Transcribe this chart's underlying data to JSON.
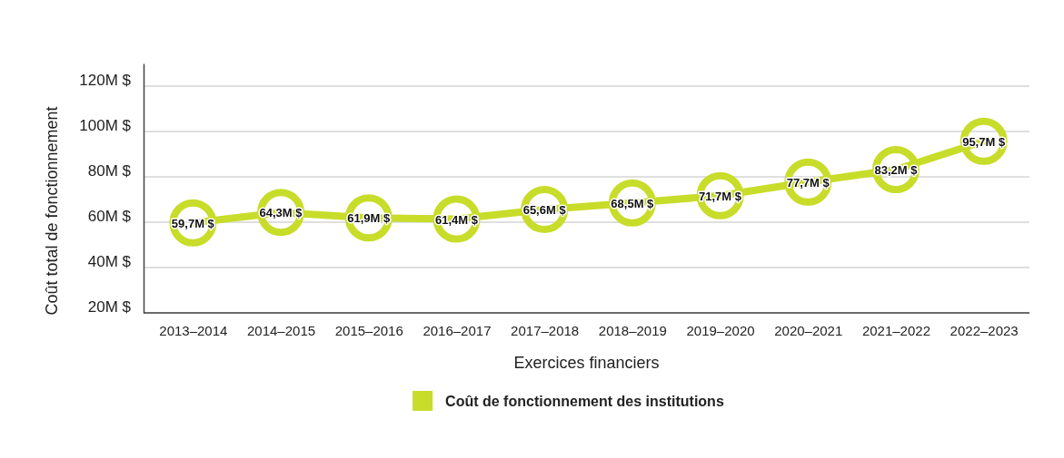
{
  "chart_data": {
    "type": "line",
    "xlabel": "Exercices financiers",
    "ylabel": "Coût total de fonctionnement",
    "categories": [
      "2013–2014",
      "2014–2015",
      "2015–2016",
      "2016–2017",
      "2017–2018",
      "2018–2019",
      "2019–2020",
      "2020–2021",
      "2021–2022",
      "2022–2023"
    ],
    "series": [
      {
        "name": "Coût de fonctionnement des institutions",
        "color": "#c8dc2a",
        "values": [
          59.7,
          64.3,
          61.9,
          61.4,
          65.6,
          68.5,
          71.7,
          77.7,
          83.2,
          95.7
        ],
        "value_labels": [
          "59,7M $",
          "64,3M $",
          "61,9M $",
          "61,4M $",
          "65,6M $",
          "68,5M $",
          "71,7M $",
          "77,7M $",
          "83,2M $",
          "95,7M $"
        ]
      }
    ],
    "ylim": [
      20,
      130
    ],
    "yticks": [
      {
        "value": 20,
        "label": "20M $"
      },
      {
        "value": 40,
        "label": "40M $"
      },
      {
        "value": 60,
        "label": "60M $"
      },
      {
        "value": 80,
        "label": "80M $"
      },
      {
        "value": 100,
        "label": "100M $"
      },
      {
        "value": 120,
        "label": "120M $"
      }
    ],
    "grid": "y",
    "legend": "bottom",
    "marker": "circle",
    "line_style": "solid"
  }
}
